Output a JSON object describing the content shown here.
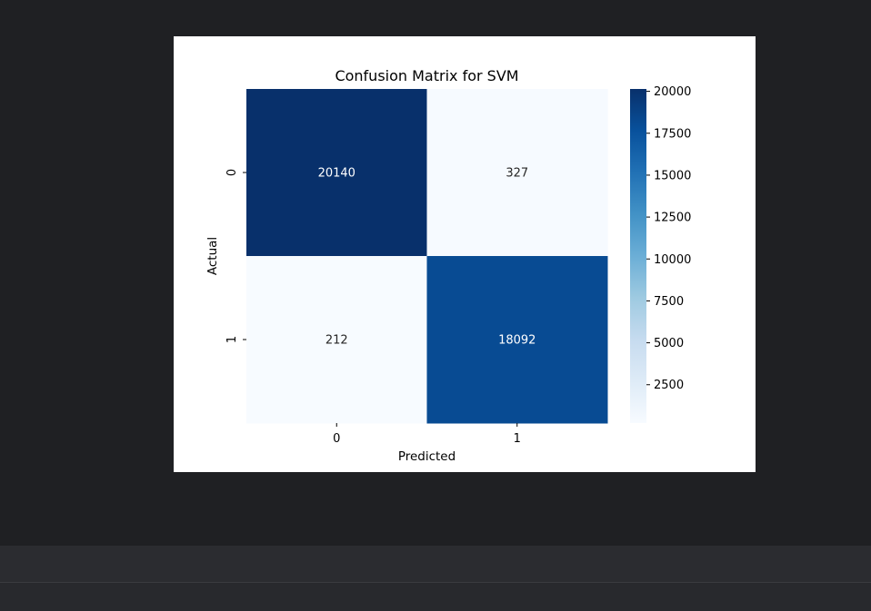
{
  "chart_data": {
    "type": "heatmap",
    "title": "Confusion Matrix for SVM",
    "xlabel": "Predicted",
    "ylabel": "Actual",
    "x_categories": [
      "0",
      "1"
    ],
    "y_categories": [
      "0",
      "1"
    ],
    "values": [
      [
        20140,
        327
      ],
      [
        212,
        18092
      ]
    ],
    "colormap": "Blues",
    "colorbar": {
      "range": [
        212,
        20140
      ],
      "ticks": [
        2500,
        5000,
        7500,
        10000,
        12500,
        15000,
        17500,
        20000
      ]
    }
  }
}
